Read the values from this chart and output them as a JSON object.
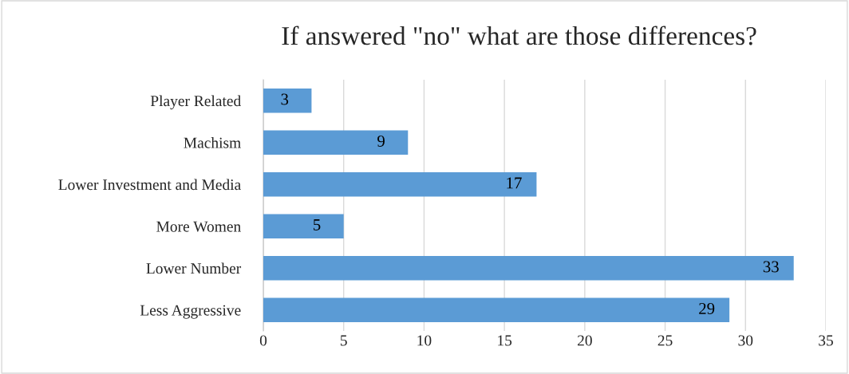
{
  "chart_data": {
    "type": "bar",
    "orientation": "horizontal",
    "title": "If answered \"no\" what are those differences?",
    "categories": [
      "Player Related",
      "Machism",
      "Lower Investment and Media",
      "More Women",
      "Lower Number",
      "Less Aggressive"
    ],
    "values": [
      3,
      9,
      17,
      5,
      33,
      29
    ],
    "color": "#5b9bd5",
    "xlim": [
      0,
      35
    ],
    "xticks": [
      0,
      5,
      10,
      15,
      20,
      25,
      30,
      35
    ],
    "grid": "x",
    "data_labels": true,
    "legend": false
  }
}
